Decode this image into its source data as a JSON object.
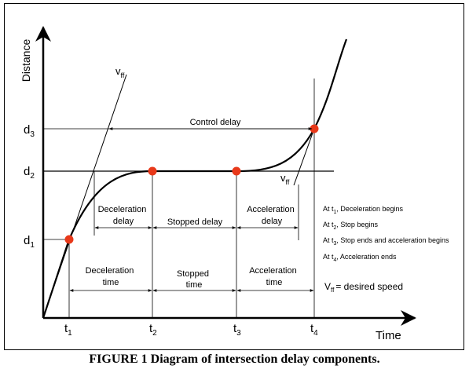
{
  "figure": {
    "caption": "FIGURE 1 Diagram of intersection delay components.",
    "axes": {
      "y_label": "Distance",
      "x_label": "Time"
    },
    "y_ticks": [
      {
        "base": "d",
        "sub": "3"
      },
      {
        "base": "d",
        "sub": "2"
      },
      {
        "base": "d",
        "sub": "1"
      }
    ],
    "x_ticks": [
      {
        "base": "t",
        "sub": "1"
      },
      {
        "base": "t",
        "sub": "2"
      },
      {
        "base": "t",
        "sub": "3"
      },
      {
        "base": "t",
        "sub": "4"
      }
    ],
    "line_labels": {
      "vff_top": {
        "base": "v",
        "sub": "ff"
      },
      "vff_lower": {
        "base": "v",
        "sub": "ff"
      }
    },
    "spans": {
      "control_delay": "Control delay",
      "deceleration_delay": [
        "Deceleration",
        "delay"
      ],
      "stopped_delay": "Stopped delay",
      "acceleration_delay": [
        "Acceleration",
        "delay"
      ],
      "deceleration_time": [
        "Deceleration",
        "time"
      ],
      "stopped_time": [
        "Stopped",
        "time"
      ],
      "acceleration_time": [
        "Acceleration",
        "time"
      ]
    },
    "notes": [
      {
        "pre": "At t",
        "sub": "1",
        "post": ", Deceleration begins"
      },
      {
        "pre": "At t",
        "sub": "2",
        "post": ", Stop begins"
      },
      {
        "pre": "At t",
        "sub": "3",
        "post": ", Stop ends and acceleration begins"
      },
      {
        "pre": "At t",
        "sub": "4",
        "post": ", Acceleration ends"
      }
    ],
    "speed_note": {
      "pre": "V",
      "sub": "ff",
      "post": "= desired speed"
    },
    "colors": {
      "point": "#e8391a",
      "line": "#000000",
      "frame": "#000000"
    }
  }
}
